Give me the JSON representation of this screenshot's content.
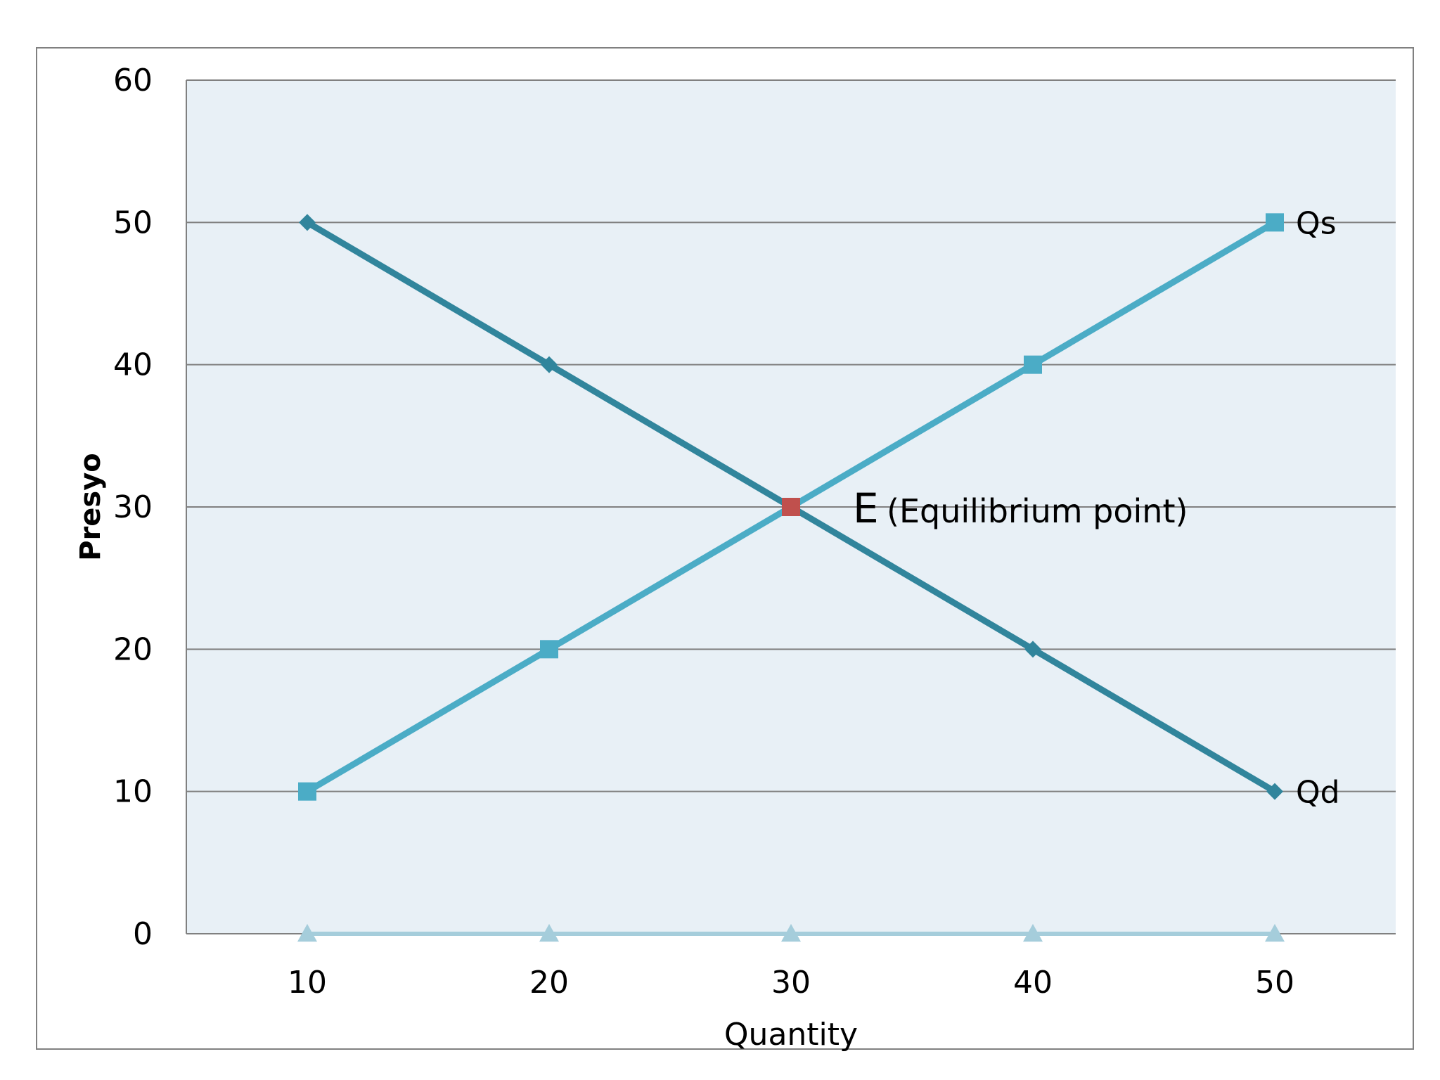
{
  "chart_data": {
    "type": "line",
    "title": "",
    "xlabel": "Quantity",
    "ylabel": "Presyo",
    "x": [
      10,
      20,
      30,
      40,
      50
    ],
    "ylim": [
      0,
      60
    ],
    "yticks": [
      0,
      10,
      20,
      30,
      40,
      50,
      60
    ],
    "grid": true,
    "legend": "none",
    "series": [
      {
        "name": "Qd",
        "values": [
          50,
          40,
          30,
          20,
          10
        ],
        "color": "#31859C",
        "marker": "diamond"
      },
      {
        "name": "Qs",
        "values": [
          10,
          20,
          30,
          40,
          50
        ],
        "color": "#4BACC6",
        "marker": "square"
      },
      {
        "name": "",
        "values": [
          0,
          0,
          0,
          0,
          0
        ],
        "color": "#A5CDDB",
        "marker": "triangle"
      }
    ],
    "annotations": [
      {
        "x": 30,
        "y": 30,
        "letter": "E",
        "text": "(Equilibrium point)",
        "marker_color": "#C0504D"
      }
    ],
    "colors": {
      "plot_background": "#E8F0F6",
      "gridline": "#808080",
      "border": "#808080"
    }
  }
}
